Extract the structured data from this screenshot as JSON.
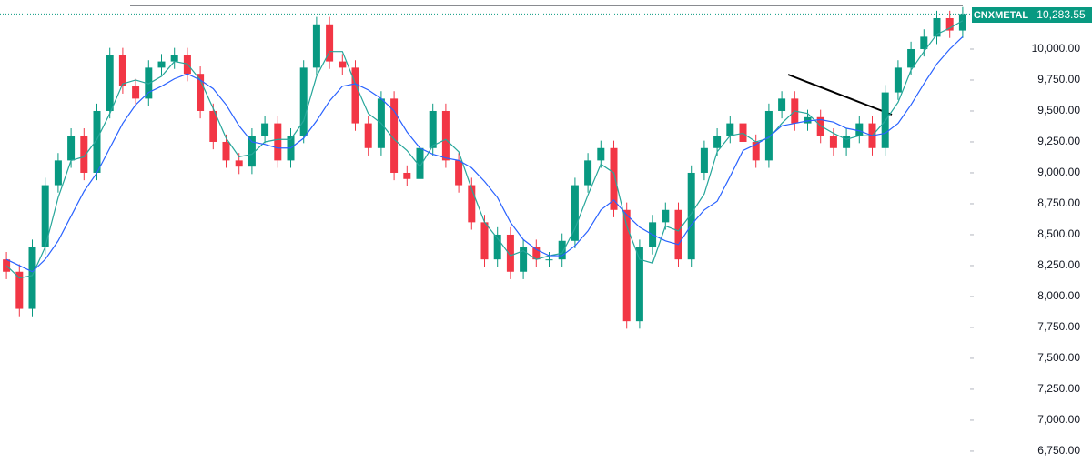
{
  "chart_data": {
    "type": "candlestick",
    "symbol": "CNXMETAL",
    "last_price": {
      "value": 10283.55,
      "label": "10,283.55"
    },
    "up_color": "#089981",
    "down_color": "#f23645",
    "open": [
      8300,
      8200,
      7900,
      8400,
      8900,
      9100,
      9300,
      9000,
      9500,
      9950,
      9700,
      9600,
      9850,
      9900,
      9950,
      9800,
      9500,
      9250,
      9100,
      9050,
      9300,
      9400,
      9100,
      9300,
      9850,
      10200,
      9900,
      9850,
      9400,
      9200,
      9600,
      9000,
      8950,
      9200,
      9500,
      9100,
      8900,
      8600,
      8300,
      8500,
      8200,
      8400,
      8300,
      8300,
      8450,
      8900,
      9100,
      9200,
      8700,
      7800,
      8400,
      8600,
      8700,
      8300,
      9000,
      9200,
      9300,
      9400,
      9250,
      9100,
      9500,
      9600,
      9400,
      9450,
      9300,
      9200,
      9300,
      9400,
      9200,
      9650,
      9850,
      10000,
      10100,
      10250,
      10150
    ],
    "high": [
      8360,
      8260,
      8460,
      8960,
      9160,
      9360,
      9360,
      9560,
      10010,
      10010,
      9760,
      9910,
      9960,
      10010,
      10010,
      9860,
      9560,
      9310,
      9160,
      9360,
      9460,
      9460,
      9360,
      9910,
      10260,
      10260,
      9960,
      9910,
      9460,
      9660,
      9660,
      9060,
      9260,
      9560,
      9560,
      9160,
      8960,
      8660,
      8560,
      8560,
      8460,
      8460,
      8360,
      8510,
      8960,
      9160,
      9260,
      9260,
      8760,
      8460,
      8660,
      8760,
      8760,
      9060,
      9260,
      9360,
      9460,
      9460,
      9310,
      9560,
      9660,
      9660,
      9510,
      9510,
      9360,
      9360,
      9460,
      9460,
      9710,
      9910,
      10060,
      10160,
      10310,
      10310,
      10340
    ],
    "low": [
      8140,
      7840,
      7840,
      8340,
      8840,
      9040,
      8940,
      8940,
      9440,
      9640,
      9540,
      9540,
      9790,
      9840,
      9740,
      9440,
      9190,
      9040,
      8990,
      8990,
      9240,
      9040,
      9040,
      9240,
      9790,
      9840,
      9790,
      9340,
      9140,
      9140,
      8940,
      8890,
      8890,
      9140,
      9040,
      8840,
      8540,
      8240,
      8240,
      8140,
      8140,
      8240,
      8240,
      8240,
      8390,
      8840,
      9040,
      8640,
      7740,
      7740,
      8340,
      8540,
      8240,
      8240,
      8940,
      9140,
      9240,
      9190,
      9040,
      9040,
      9440,
      9340,
      9340,
      9240,
      9140,
      9140,
      9240,
      9140,
      9140,
      9590,
      9790,
      9940,
      10040,
      10090,
      10090
    ],
    "close": [
      8200,
      7900,
      8400,
      8900,
      9100,
      9300,
      9000,
      9500,
      9950,
      9700,
      9600,
      9850,
      9900,
      9950,
      9800,
      9500,
      9250,
      9100,
      9050,
      9300,
      9400,
      9100,
      9300,
      9850,
      10200,
      9900,
      9850,
      9400,
      9200,
      9600,
      9000,
      8950,
      9200,
      9500,
      9100,
      8900,
      8600,
      8300,
      8500,
      8200,
      8400,
      8300,
      8300,
      8450,
      8900,
      9100,
      9200,
      8700,
      7800,
      8400,
      8600,
      8700,
      8300,
      9000,
      9200,
      9300,
      9400,
      9250,
      9100,
      9500,
      9600,
      9400,
      9450,
      9300,
      9200,
      9300,
      9400,
      9200,
      9650,
      9850,
      10000,
      10100,
      10250,
      10150,
      10283.55
    ],
    "overlays": [
      {
        "color": "#26a69a",
        "values": [
          8250,
          8150,
          8170,
          8400,
          8800,
          9100,
          9130,
          9270,
          9480,
          9720,
          9750,
          9720,
          9780,
          9900,
          9880,
          9750,
          9520,
          9280,
          9130,
          9150,
          9250,
          9270,
          9270,
          9420,
          9780,
          9980,
          9980,
          9720,
          9480,
          9400,
          9270,
          9180,
          9050,
          9220,
          9270,
          9170,
          8870,
          8600,
          8470,
          8330,
          8370,
          8300,
          8330,
          8350,
          8550,
          8820,
          9070,
          9000,
          8570,
          8300,
          8270,
          8570,
          8530,
          8670,
          8830,
          9170,
          9300,
          9320,
          9250,
          9280,
          9400,
          9500,
          9480,
          9380,
          9320,
          9270,
          9300,
          9300,
          9420,
          9570,
          9830,
          9980,
          10120,
          10170,
          10230
        ]
      },
      {
        "color": "#2962ff",
        "values": [
          8300,
          8250,
          8200,
          8300,
          8450,
          8650,
          8850,
          9000,
          9200,
          9400,
          9550,
          9650,
          9700,
          9760,
          9800,
          9750,
          9680,
          9550,
          9380,
          9250,
          9230,
          9200,
          9200,
          9280,
          9420,
          9580,
          9700,
          9720,
          9670,
          9600,
          9500,
          9330,
          9200,
          9150,
          9120,
          9100,
          9040,
          8930,
          8800,
          8600,
          8460,
          8380,
          8330,
          8330,
          8410,
          8530,
          8700,
          8780,
          8660,
          8560,
          8500,
          8450,
          8420,
          8580,
          8700,
          8770,
          8970,
          9180,
          9230,
          9290,
          9380,
          9400,
          9420,
          9430,
          9410,
          9360,
          9340,
          9300,
          9320,
          9400,
          9550,
          9720,
          9880,
          10000,
          10100
        ]
      }
    ],
    "ylim": [
      6654,
      10397
    ],
    "yticks": [
      {
        "value": 6750,
        "label": "6,750.00"
      },
      {
        "value": 7000,
        "label": "7,000.00"
      },
      {
        "value": 7250,
        "label": "7,250.00"
      },
      {
        "value": 7500,
        "label": "7,500.00"
      },
      {
        "value": 7750,
        "label": "7,750.00"
      },
      {
        "value": 8000,
        "label": "8,000.00"
      },
      {
        "value": 8250,
        "label": "8,250.00"
      },
      {
        "value": 8500,
        "label": "8,500.00"
      },
      {
        "value": 8750,
        "label": "8,750.00"
      },
      {
        "value": 9000,
        "label": "9,000.00"
      },
      {
        "value": 9250,
        "label": "9,250.00"
      },
      {
        "value": 9500,
        "label": "9,500.00"
      },
      {
        "value": 9750,
        "label": "9,750.00"
      },
      {
        "value": 10000,
        "label": "10,000.00"
      }
    ]
  }
}
